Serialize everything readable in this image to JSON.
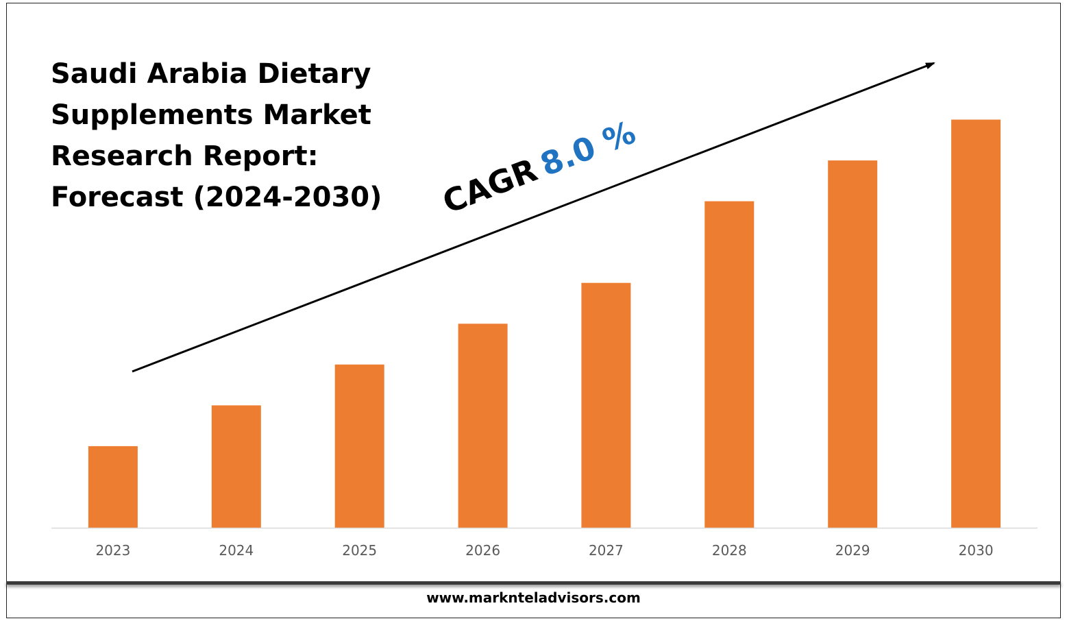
{
  "title": "Saudi Arabia Dietary Supplements Market Research Report: Forecast (2024-2030)",
  "cagr": {
    "label": "CAGR",
    "value": "8.0 %"
  },
  "footer": "www.marknteladvisors.com",
  "colors": {
    "bar": "#ed7d31",
    "cagr_value": "#1f73c1",
    "axis": "#d9d9d9",
    "tick": "#595959"
  },
  "chart_data": {
    "type": "bar",
    "title": "Saudi Arabia Dietary Supplements Market Research Report: Forecast (2024-2030)",
    "xlabel": "",
    "ylabel": "",
    "categories": [
      "2023",
      "2024",
      "2025",
      "2026",
      "2027",
      "2028",
      "2029",
      "2030"
    ],
    "values": [
      20,
      30,
      40,
      50,
      60,
      80,
      90,
      100
    ],
    "ylim": [
      0,
      110
    ],
    "grid": false,
    "legend": "none",
    "annotations": [
      "CAGR 8.0 %"
    ]
  }
}
